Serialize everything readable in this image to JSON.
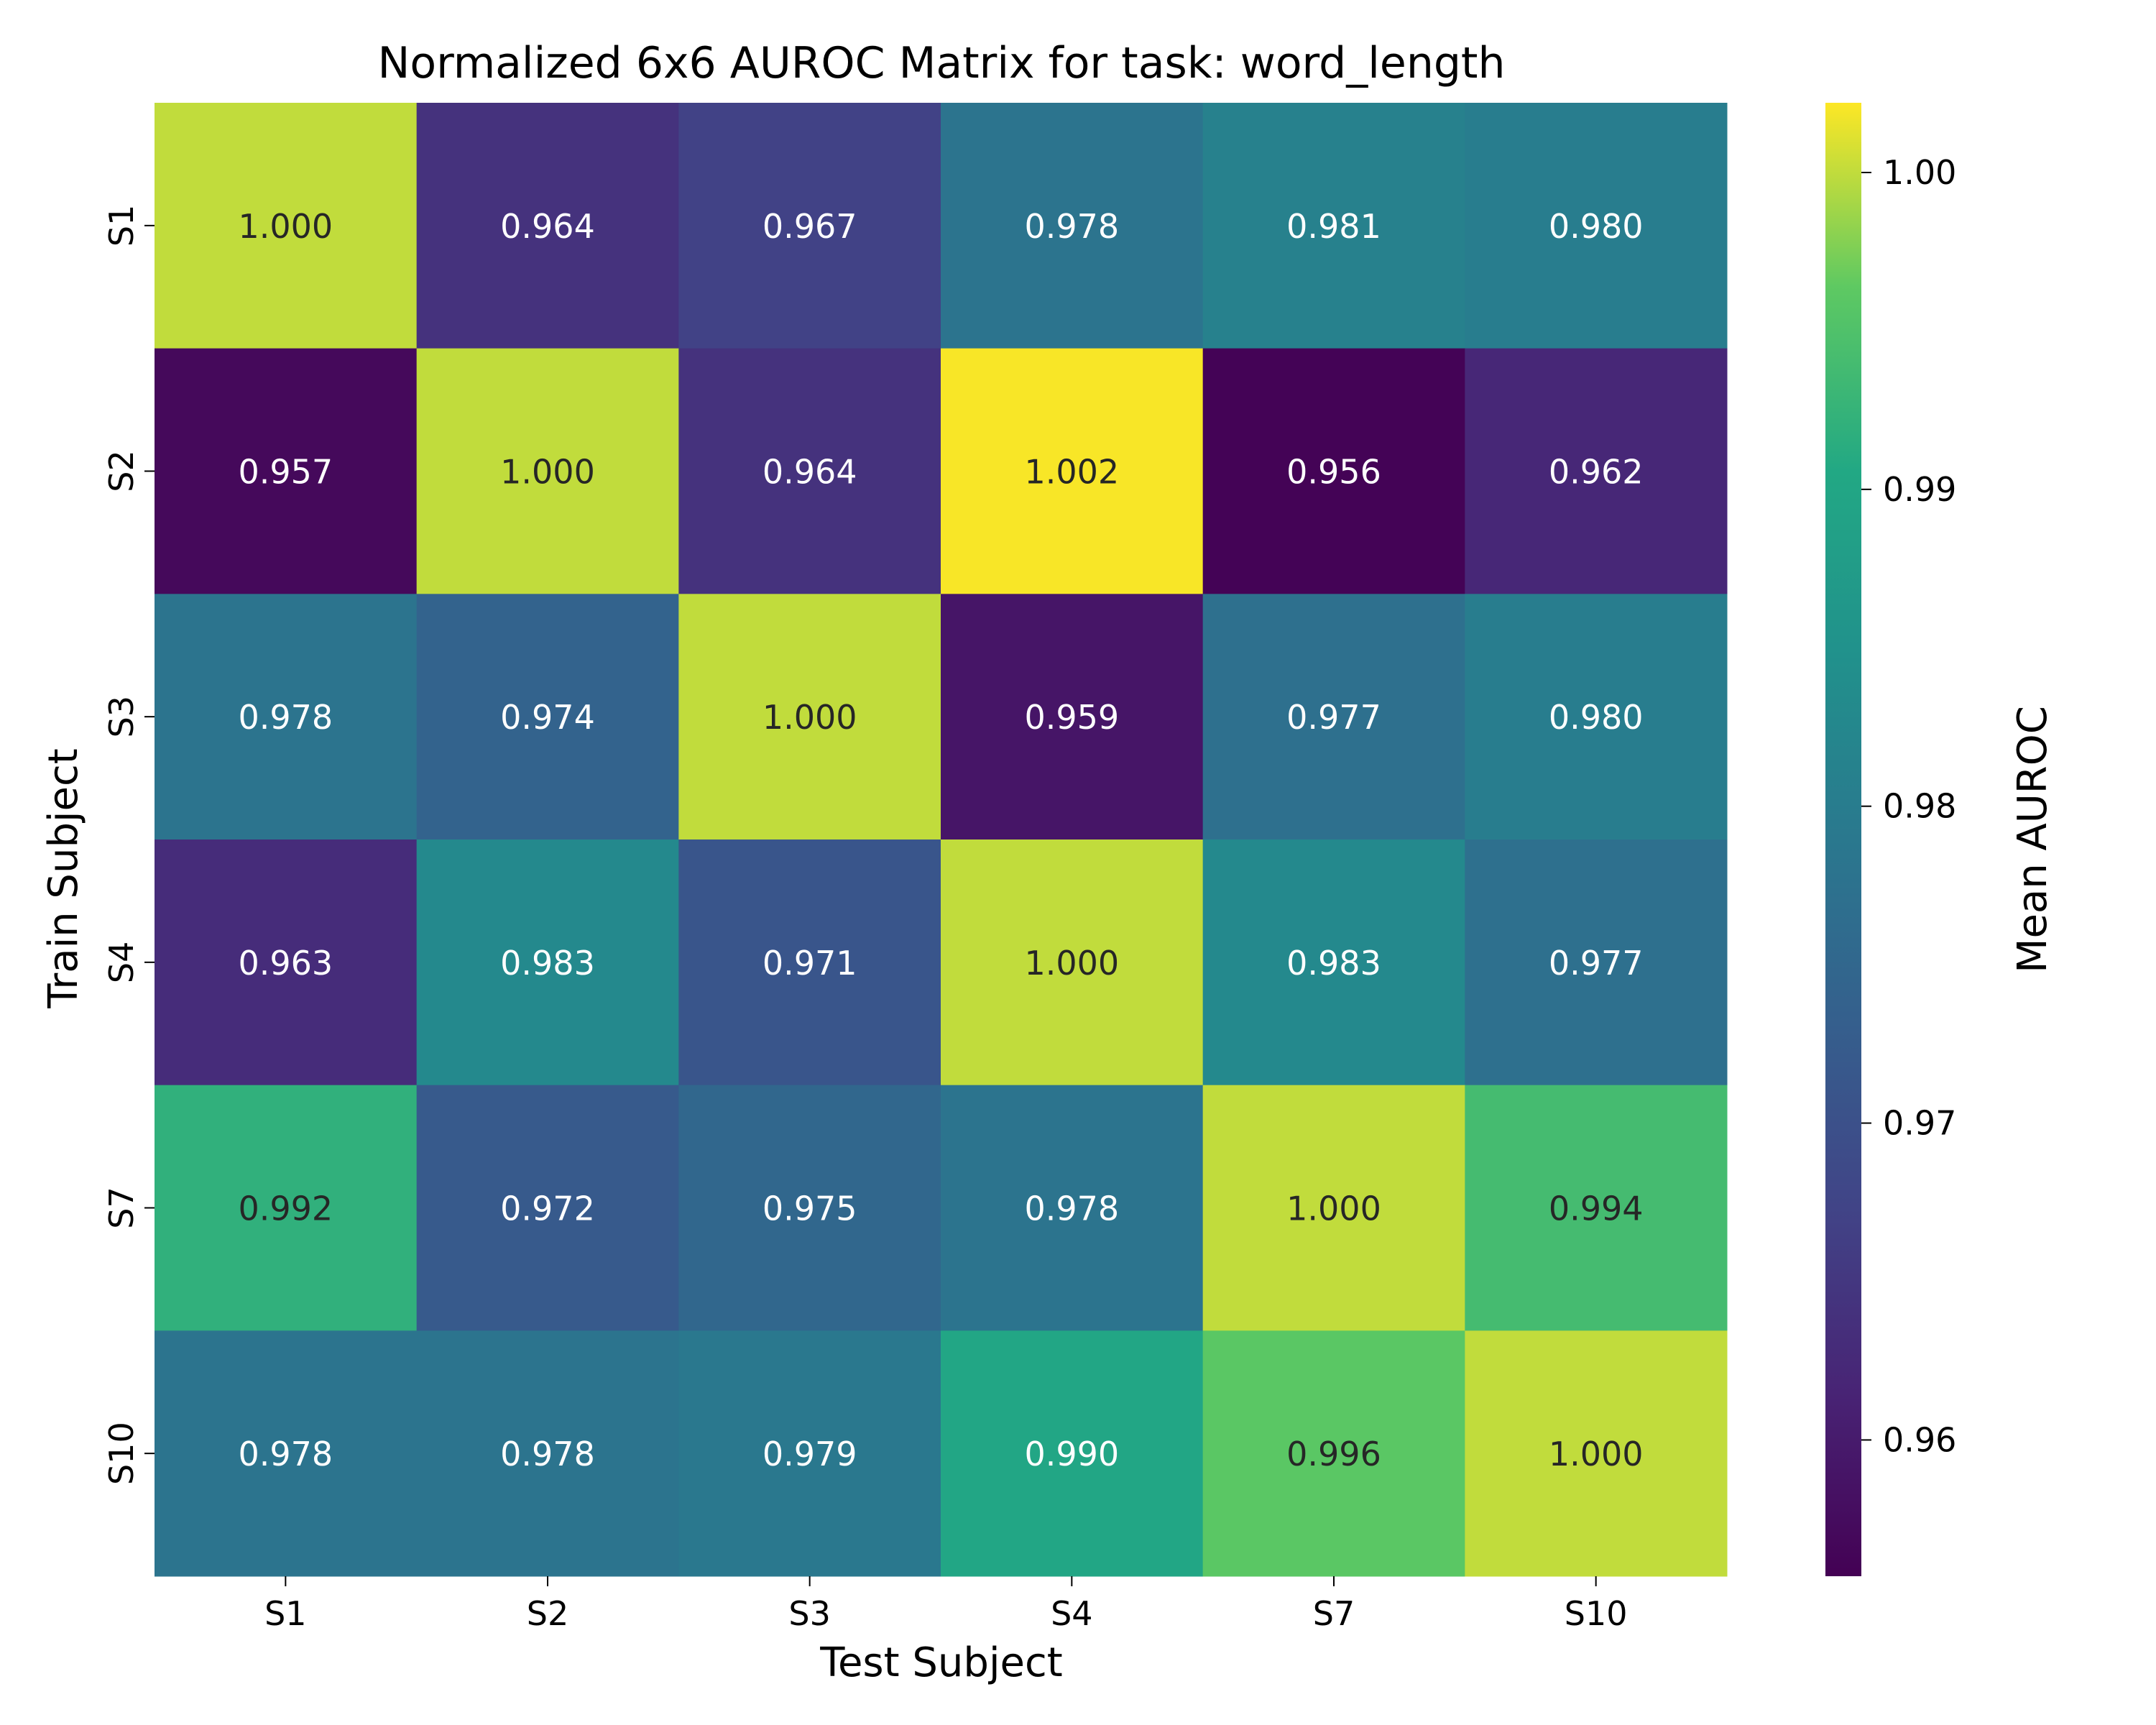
{
  "chart_data": {
    "type": "heatmap",
    "title": "Normalized 6x6 AUROC Matrix for task: word_length",
    "xlabel": "Test Subject",
    "ylabel": "Train Subject",
    "x_categories": [
      "S1",
      "S2",
      "S3",
      "S4",
      "S7",
      "S10"
    ],
    "y_categories": [
      "S1",
      "S2",
      "S3",
      "S4",
      "S7",
      "S10"
    ],
    "values": [
      [
        1.0,
        0.964,
        0.967,
        0.978,
        0.981,
        0.98
      ],
      [
        0.957,
        1.0,
        0.964,
        1.002,
        0.956,
        0.962
      ],
      [
        0.978,
        0.974,
        1.0,
        0.959,
        0.977,
        0.98
      ],
      [
        0.963,
        0.983,
        0.971,
        1.0,
        0.983,
        0.977
      ],
      [
        0.992,
        0.972,
        0.975,
        0.978,
        1.0,
        0.994
      ],
      [
        0.978,
        0.978,
        0.979,
        0.99,
        0.996,
        1.0
      ]
    ],
    "value_labels": [
      [
        "1.000",
        "0.964",
        "0.967",
        "0.978",
        "0.981",
        "0.980"
      ],
      [
        "0.957",
        "1.000",
        "0.964",
        "1.002",
        "0.956",
        "0.962"
      ],
      [
        "0.978",
        "0.974",
        "1.000",
        "0.959",
        "0.977",
        "0.980"
      ],
      [
        "0.963",
        "0.983",
        "0.971",
        "1.000",
        "0.983",
        "0.977"
      ],
      [
        "0.992",
        "0.972",
        "0.975",
        "0.978",
        "1.000",
        "0.994"
      ],
      [
        "0.978",
        "0.978",
        "0.979",
        "0.990",
        "0.996",
        "1.000"
      ]
    ],
    "colorbar": {
      "label": "Mean AUROC",
      "colormap": "viridis",
      "vmin": 0.9557,
      "vmax": 1.0022,
      "ticks": [
        0.96,
        0.97,
        0.98,
        0.99,
        1.0
      ],
      "tick_labels": [
        "0.96",
        "0.97",
        "0.98",
        "0.99",
        "1.00"
      ]
    },
    "grid": false,
    "legend": "colorbar-right"
  },
  "colors": {
    "dark_text": "#262626",
    "light_text": "#ffffff"
  }
}
